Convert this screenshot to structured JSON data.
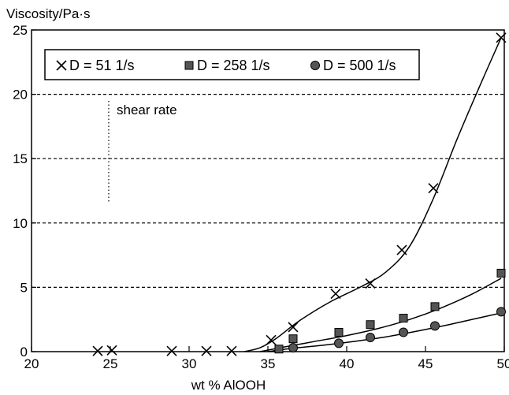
{
  "chart_data": {
    "type": "scatter",
    "ylabel": "Viscosity/Pa·s",
    "xlabel": "wt % AlOOH",
    "xlim": [
      20,
      50
    ],
    "ylim": [
      0,
      25
    ],
    "xticks": [
      20,
      25,
      30,
      35,
      40,
      45,
      50
    ],
    "yticks": [
      0,
      5,
      10,
      15,
      20,
      25
    ],
    "xtick_labels": [
      "20",
      "25",
      "30",
      "35",
      "40",
      "45",
      "50"
    ],
    "ytick_labels": [
      "0",
      "5",
      "10",
      "15",
      "20",
      "25"
    ],
    "grid": "horizontal dashed",
    "legend_position": "top-left",
    "annotation": "shear rate",
    "series": [
      {
        "name": "D = 51 1/s",
        "marker": "x",
        "points": [
          [
            24.2,
            0.05
          ],
          [
            25.1,
            0.1
          ],
          [
            28.9,
            0.05
          ],
          [
            31.1,
            0.05
          ],
          [
            32.7,
            0.05
          ],
          [
            35.2,
            0.9
          ],
          [
            36.6,
            1.9
          ],
          [
            39.3,
            4.5
          ],
          [
            41.5,
            5.3
          ],
          [
            43.5,
            7.9
          ],
          [
            45.5,
            12.7
          ],
          [
            49.8,
            24.4
          ]
        ],
        "curve": [
          [
            33.5,
            0
          ],
          [
            34.5,
            0.3
          ],
          [
            35.5,
            1.0
          ],
          [
            37,
            2.4
          ],
          [
            39,
            3.9
          ],
          [
            41,
            5.1
          ],
          [
            42.5,
            6.2
          ],
          [
            44,
            8.2
          ],
          [
            45.5,
            11.9
          ],
          [
            47,
            16.5
          ],
          [
            48.5,
            20.8
          ],
          [
            49.8,
            24.4
          ]
        ]
      },
      {
        "name": "D = 258 1/s",
        "marker": "square",
        "points": [
          [
            35.7,
            0.2
          ],
          [
            36.6,
            1.0
          ],
          [
            39.5,
            1.5
          ],
          [
            41.5,
            2.1
          ],
          [
            43.6,
            2.6
          ],
          [
            45.6,
            3.5
          ],
          [
            49.8,
            6.1
          ]
        ],
        "curve": [
          [
            34.5,
            0
          ],
          [
            36,
            0.35
          ],
          [
            38,
            0.8
          ],
          [
            40,
            1.25
          ],
          [
            42,
            1.8
          ],
          [
            44,
            2.5
          ],
          [
            46,
            3.4
          ],
          [
            48,
            4.5
          ],
          [
            49.8,
            5.7
          ]
        ]
      },
      {
        "name": "D = 500 1/s",
        "marker": "circle",
        "points": [
          [
            36.6,
            0.3
          ],
          [
            39.5,
            0.65
          ],
          [
            41.5,
            1.1
          ],
          [
            43.6,
            1.5
          ],
          [
            45.6,
            2.0
          ],
          [
            49.8,
            3.1
          ]
        ],
        "curve": [
          [
            35,
            0
          ],
          [
            36.5,
            0.25
          ],
          [
            38.5,
            0.5
          ],
          [
            40.5,
            0.8
          ],
          [
            42.5,
            1.15
          ],
          [
            44.5,
            1.6
          ],
          [
            46.5,
            2.1
          ],
          [
            48.5,
            2.65
          ],
          [
            49.8,
            3.0
          ]
        ]
      }
    ]
  }
}
